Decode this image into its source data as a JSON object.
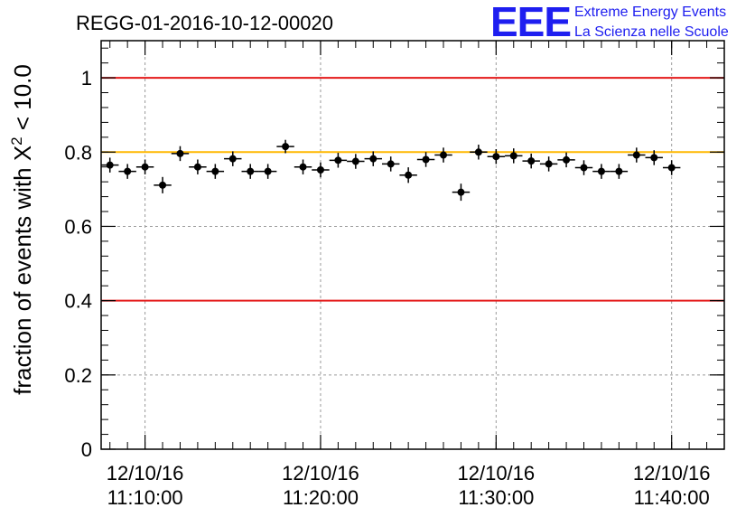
{
  "chart_data": {
    "type": "scatter",
    "title": "REGG-01-2016-10-12-00020",
    "xlabel": "",
    "ylabel_prefix": "fraction of events with X",
    "ylabel_sup": "2",
    "ylabel_suffix": " < 10.0",
    "x_start": "11:07:30",
    "x_end": "11:43:00",
    "bin_minutes": 1.0,
    "ylim": [
      0,
      1.1
    ],
    "y_ticks": [
      {
        "value": 0,
        "label": "0"
      },
      {
        "value": 0.2,
        "label": "0.2"
      },
      {
        "value": 0.4,
        "label": "0.4"
      },
      {
        "value": 0.6,
        "label": "0.6"
      },
      {
        "value": 0.8,
        "label": "0.8"
      },
      {
        "value": 1.0,
        "label": "1"
      }
    ],
    "x_ticks": [
      {
        "time": "11:10:00",
        "date_label": "12/10/16",
        "time_label": "11:10:00"
      },
      {
        "time": "11:20:00",
        "date_label": "12/10/16",
        "time_label": "11:20:00"
      },
      {
        "time": "11:30:00",
        "date_label": "12/10/16",
        "time_label": "11:30:00"
      },
      {
        "time": "11:40:00",
        "date_label": "12/10/16",
        "time_label": "11:40:00"
      }
    ],
    "grid": true,
    "reference_lines": [
      {
        "value": 1.0,
        "color": "#e41a1a"
      },
      {
        "value": 0.8,
        "color": "#ffb800"
      },
      {
        "value": 0.4,
        "color": "#e41a1a"
      }
    ],
    "series": [
      {
        "name": "fraction",
        "color": "#000000",
        "points": [
          {
            "t": "11:08:00",
            "y": 0.765,
            "err": 0.02
          },
          {
            "t": "11:09:00",
            "y": 0.748,
            "err": 0.02
          },
          {
            "t": "11:10:00",
            "y": 0.76,
            "err": 0.02
          },
          {
            "t": "11:11:00",
            "y": 0.711,
            "err": 0.022
          },
          {
            "t": "11:12:00",
            "y": 0.796,
            "err": 0.02
          },
          {
            "t": "11:13:00",
            "y": 0.76,
            "err": 0.02
          },
          {
            "t": "11:14:00",
            "y": 0.748,
            "err": 0.02
          },
          {
            "t": "11:15:00",
            "y": 0.782,
            "err": 0.02
          },
          {
            "t": "11:16:00",
            "y": 0.748,
            "err": 0.02
          },
          {
            "t": "11:17:00",
            "y": 0.748,
            "err": 0.02
          },
          {
            "t": "11:18:00",
            "y": 0.815,
            "err": 0.018
          },
          {
            "t": "11:19:00",
            "y": 0.76,
            "err": 0.02
          },
          {
            "t": "11:20:00",
            "y": 0.752,
            "err": 0.02
          },
          {
            "t": "11:21:00",
            "y": 0.778,
            "err": 0.02
          },
          {
            "t": "11:22:00",
            "y": 0.775,
            "err": 0.02
          },
          {
            "t": "11:23:00",
            "y": 0.782,
            "err": 0.02
          },
          {
            "t": "11:24:00",
            "y": 0.768,
            "err": 0.02
          },
          {
            "t": "11:25:00",
            "y": 0.738,
            "err": 0.021
          },
          {
            "t": "11:26:00",
            "y": 0.78,
            "err": 0.02
          },
          {
            "t": "11:27:00",
            "y": 0.792,
            "err": 0.02
          },
          {
            "t": "11:28:00",
            "y": 0.692,
            "err": 0.023
          },
          {
            "t": "11:29:00",
            "y": 0.8,
            "err": 0.02
          },
          {
            "t": "11:30:00",
            "y": 0.788,
            "err": 0.02
          },
          {
            "t": "11:31:00",
            "y": 0.79,
            "err": 0.02
          },
          {
            "t": "11:32:00",
            "y": 0.776,
            "err": 0.02
          },
          {
            "t": "11:33:00",
            "y": 0.768,
            "err": 0.02
          },
          {
            "t": "11:34:00",
            "y": 0.779,
            "err": 0.02
          },
          {
            "t": "11:35:00",
            "y": 0.758,
            "err": 0.02
          },
          {
            "t": "11:36:00",
            "y": 0.748,
            "err": 0.02
          },
          {
            "t": "11:37:00",
            "y": 0.748,
            "err": 0.02
          },
          {
            "t": "11:38:00",
            "y": 0.792,
            "err": 0.02
          },
          {
            "t": "11:39:00",
            "y": 0.785,
            "err": 0.02
          },
          {
            "t": "11:40:00",
            "y": 0.758,
            "err": 0.02
          }
        ]
      }
    ]
  },
  "logo": {
    "mark": "EEE",
    "line1": "Extreme Energy Events",
    "line2": "La Scienza nelle Scuole",
    "color": "#1e1ef0"
  }
}
